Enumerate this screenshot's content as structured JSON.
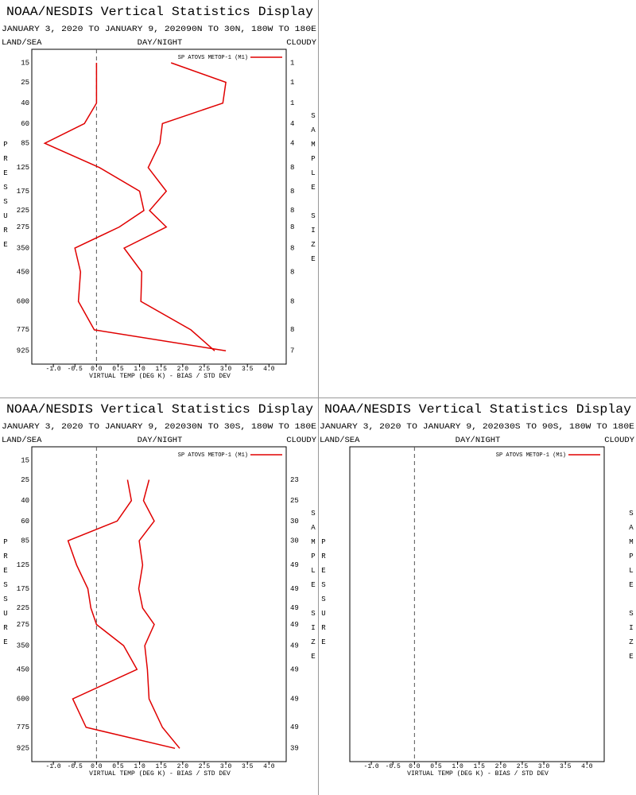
{
  "chart_data": [
    {
      "type": "line",
      "title": "NOAA/NESDIS Vertical Statistics Display",
      "subtitle": "JANUARY 3, 2020 TO JANUARY 9, 202090N TO 30N, 180W TO 180E",
      "land_sea": "LAND/SEA",
      "day_night": "DAY/NIGHT",
      "cloudy": "CLOUDY",
      "xlabel": "VIRTUAL TEMP (DEG K) - BIAS / STD DEV",
      "ylabel": "PRESSURE",
      "y2label": "SAMPLE SIZE",
      "categories": [
        15,
        25,
        40,
        60,
        85,
        125,
        175,
        225,
        275,
        350,
        450,
        600,
        775,
        925
      ],
      "sample_size": [
        1,
        1,
        1,
        4,
        4,
        8,
        8,
        8,
        8,
        8,
        8,
        8,
        8,
        7
      ],
      "series": [
        {
          "name": "SP ATOVS METOP-1 (M1)",
          "color": "#e00000",
          "bias": [
            0.0,
            0.0,
            0.0,
            -0.28,
            -1.2,
            0.07,
            1.0,
            1.1,
            0.53,
            -0.5,
            -0.37,
            -0.42,
            -0.05,
            3.0
          ],
          "std_dev": [
            1.73,
            3.0,
            2.93,
            1.53,
            1.47,
            1.2,
            1.62,
            1.23,
            1.62,
            0.64,
            1.05,
            1.03,
            2.19,
            2.74
          ]
        }
      ],
      "xlim": [
        -1.5,
        4.4
      ],
      "xticks": [
        {
          "value": -1.0,
          "label": "-1.0"
        },
        -0.5,
        {
          "value": 0,
          "label": "0.0"
        },
        0.5,
        {
          "value": 1,
          "label": "1.0"
        },
        1.5,
        {
          "value": 2,
          "label": "2.0"
        },
        2.5,
        {
          "value": 3,
          "label": "3.0"
        },
        3.5,
        {
          "value": 4,
          "label": "4.0"
        }
      ],
      "ylim": [
        10,
        1030
      ],
      "yscale": "power",
      "yexponent": 0.3,
      "yinverted": true
    },
    {
      "type": "line",
      "title": "NOAA/NESDIS Vertical Statistics Display",
      "subtitle": "JANUARY 3, 2020 TO JANUARY 9, 202030N TO 30S, 180W TO 180E",
      "land_sea": "LAND/SEA",
      "day_night": "DAY/NIGHT",
      "cloudy": "CLOUDY",
      "xlabel": "VIRTUAL TEMP (DEG K) - BIAS / STD DEV",
      "ylabel": "PRESSURE",
      "y2label": "SAMPLE SIZE",
      "categories": [
        15,
        25,
        40,
        60,
        85,
        125,
        175,
        225,
        275,
        350,
        450,
        600,
        775,
        925
      ],
      "sample_size": [
        null,
        23,
        25,
        30,
        30,
        49,
        49,
        49,
        49,
        49,
        49,
        49,
        49,
        39
      ],
      "series": [
        {
          "name": "SP ATOVS METOP-1 (M1)",
          "color": "#e00000",
          "bias": [
            null,
            0.72,
            0.81,
            0.48,
            -0.66,
            -0.46,
            -0.2,
            -0.13,
            0.0,
            0.63,
            0.94,
            -0.55,
            -0.24,
            1.82
          ],
          "std_dev": [
            null,
            1.22,
            1.09,
            1.34,
            0.99,
            1.07,
            0.98,
            1.07,
            1.34,
            1.12,
            1.18,
            1.22,
            1.53,
            1.93
          ]
        }
      ],
      "xlim": [
        -1.5,
        4.4
      ],
      "xticks": [
        {
          "value": -1.0,
          "label": "-1.0"
        },
        -0.5,
        {
          "value": 0,
          "label": "0.0"
        },
        0.5,
        {
          "value": 1,
          "label": "1.0"
        },
        1.5,
        {
          "value": 2,
          "label": "2.0"
        },
        2.5,
        {
          "value": 3,
          "label": "3.0"
        },
        3.5,
        {
          "value": 4,
          "label": "4.0"
        }
      ],
      "ylim": [
        10,
        1030
      ],
      "yscale": "power",
      "yexponent": 0.3,
      "yinverted": true
    },
    {
      "type": "line",
      "title": "NOAA/NESDIS Vertical Statistics Display",
      "subtitle": "JANUARY 3, 2020 TO JANUARY 9, 202030S TO 90S, 180W TO 180E",
      "land_sea": "LAND/SEA",
      "day_night": "DAY/NIGHT",
      "cloudy": "CLOUDY",
      "xlabel": "VIRTUAL TEMP (DEG K) - BIAS / STD DEV",
      "ylabel": "PRESSURE",
      "y2label": "SAMPLE SIZE",
      "categories": [],
      "sample_size": [],
      "series": [
        {
          "name": "SP ATOVS METOP-1 (M1)",
          "color": "#e00000",
          "bias": [],
          "std_dev": []
        }
      ],
      "xlim": [
        -1.5,
        4.4
      ],
      "xticks": [
        {
          "value": -1.0,
          "label": "-1.0"
        },
        -0.5,
        {
          "value": 0,
          "label": "0.0"
        },
        0.5,
        {
          "value": 1,
          "label": "1.0"
        },
        1.5,
        {
          "value": 2,
          "label": "2.0"
        },
        2.5,
        {
          "value": 3,
          "label": "3.0"
        },
        3.5,
        {
          "value": 4,
          "label": "4.0"
        }
      ],
      "ylim": [
        10,
        1030
      ],
      "yscale": "power",
      "yexponent": 0.3,
      "yinverted": true
    }
  ]
}
